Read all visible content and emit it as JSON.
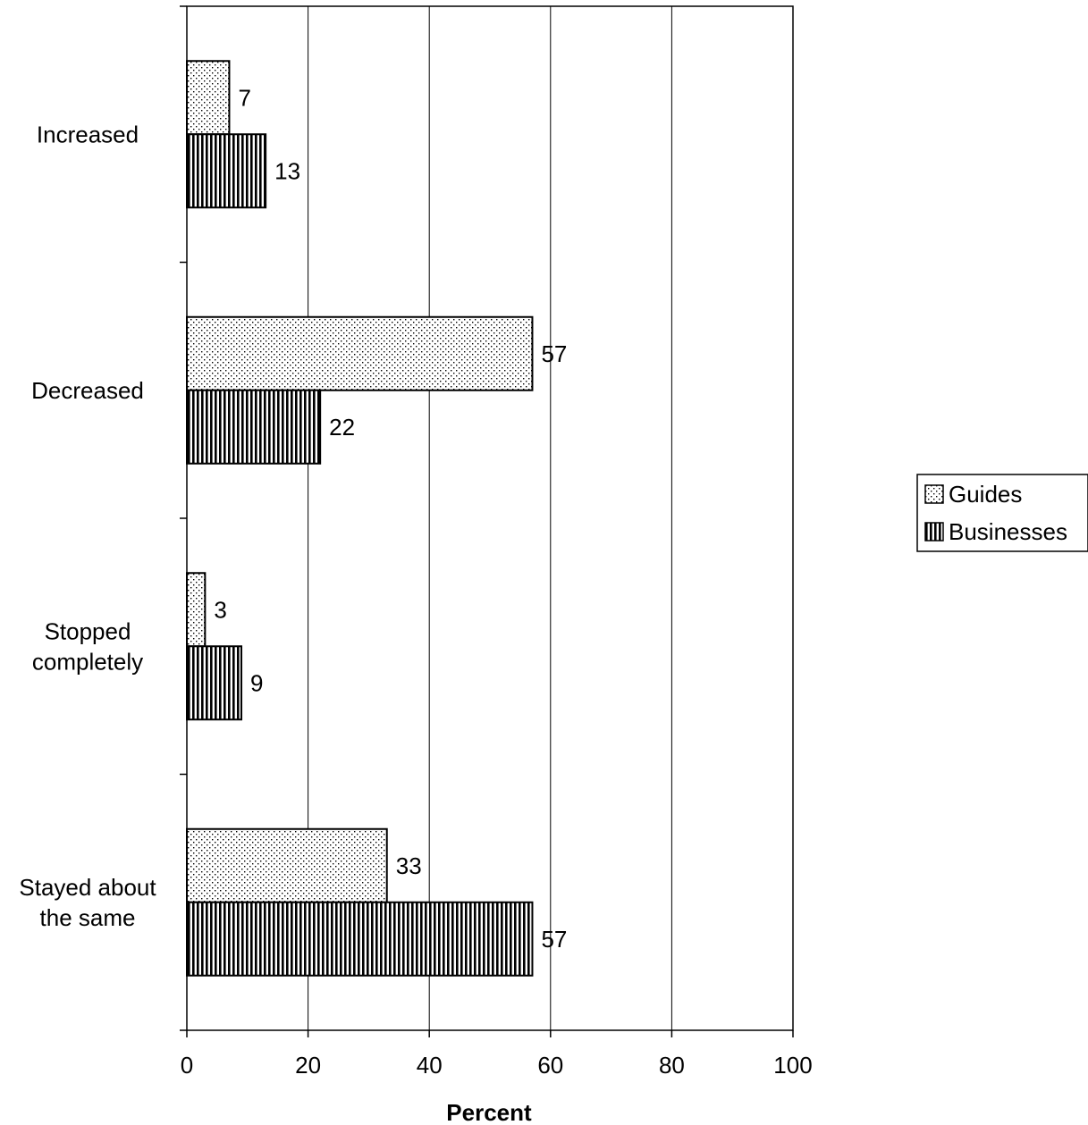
{
  "chart_data": {
    "type": "bar",
    "orientation": "horizontal",
    "categories": [
      [
        "Increased"
      ],
      [
        "Decreased"
      ],
      [
        "Stopped",
        "completely"
      ],
      [
        "Stayed about",
        "the same"
      ]
    ],
    "series": [
      {
        "name": "Guides",
        "values": [
          7,
          57,
          3,
          33
        ],
        "pattern": "dots",
        "data_labels": [
          "7",
          "57",
          "3",
          "33"
        ]
      },
      {
        "name": "Businesses",
        "values": [
          13,
          22,
          9,
          57
        ],
        "pattern": "vertical-stripes",
        "data_labels": [
          "13",
          "22",
          "9",
          "57"
        ]
      }
    ],
    "title": "",
    "xlabel": "Percent",
    "ylabel": "",
    "xlim": [
      0,
      100
    ],
    "x_ticks": [
      "0",
      "20",
      "40",
      "60",
      "80",
      "100"
    ],
    "grid": "vertical major gridlines",
    "legend": "right"
  }
}
